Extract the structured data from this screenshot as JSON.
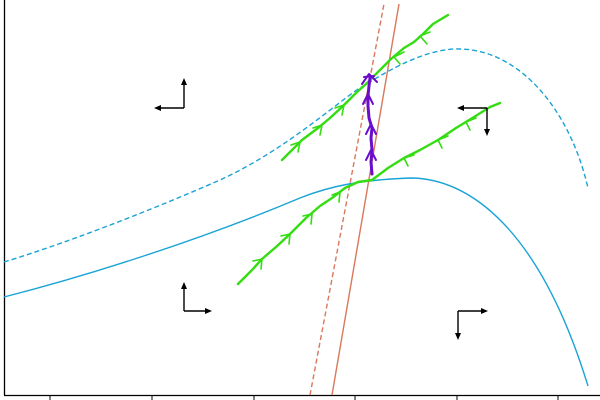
{
  "colors": {
    "background": "#ffffff",
    "axes": "#000000",
    "curve_blue": "#1aa3d6",
    "curve_orange": "#d9785a",
    "trajectory_green": "#33dd11",
    "trajectory_purple": "#6a0dcc",
    "direction_arrows": "#000000"
  },
  "chart_data": {
    "type": "line",
    "x_tick_labels": [],
    "y_tick_labels": [],
    "grid": false
  }
}
